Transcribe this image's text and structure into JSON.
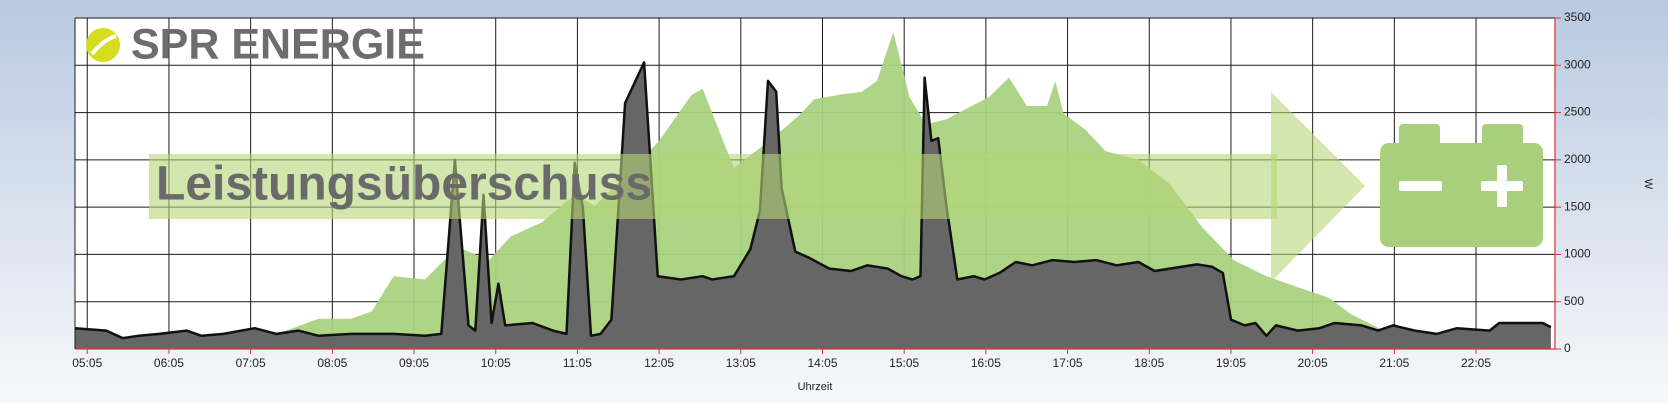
{
  "chart_data": {
    "type": "area",
    "logo": "SPR ENERGIE",
    "banner": "Leistungsüberschuss",
    "xlabel": "Uhrzeit",
    "ylabel": "W",
    "xlim": [
      296,
      1383
    ],
    "xticks": [
      {
        "value": 305,
        "label": "05:05"
      },
      {
        "value": 365,
        "label": "06:05"
      },
      {
        "value": 425,
        "label": "07:05"
      },
      {
        "value": 485,
        "label": "08:05"
      },
      {
        "value": 545,
        "label": "09:05"
      },
      {
        "value": 605,
        "label": "10:05"
      },
      {
        "value": 665,
        "label": "11:05"
      },
      {
        "value": 725,
        "label": "12:05"
      },
      {
        "value": 785,
        "label": "13:05"
      },
      {
        "value": 845,
        "label": "14:05"
      },
      {
        "value": 905,
        "label": "15:05"
      },
      {
        "value": 965,
        "label": "16:05"
      },
      {
        "value": 1025,
        "label": "17:05"
      },
      {
        "value": 1085,
        "label": "18:05"
      },
      {
        "value": 1145,
        "label": "19:05"
      },
      {
        "value": 1205,
        "label": "20:05"
      },
      {
        "value": 1265,
        "label": "21:05"
      },
      {
        "value": 1325,
        "label": "22:05"
      }
    ],
    "ylim": [
      0,
      3500
    ],
    "yticks": [
      0,
      500,
      1000,
      1500,
      2000,
      2500,
      3000,
      3500
    ],
    "grid": true,
    "axis_color": "#e03030",
    "series": [
      {
        "color": "#a9d37e",
        "fill": true,
        "x": [
          305,
          389,
          421,
          452,
          475,
          499,
          514,
          530,
          553,
          577,
          600,
          616,
          639,
          663,
          678,
          702,
          725,
          749,
          757,
          772,
          780,
          796,
          811,
          827,
          839,
          858,
          874,
          885,
          897,
          909,
          921,
          936,
          952,
          967,
          982,
          995,
          1010,
          1016,
          1022,
          1038,
          1053,
          1077,
          1100,
          1124,
          1147,
          1171,
          1194,
          1217,
          1233,
          1257,
          1280,
          1296,
          1383
        ],
        "values": [
          0,
          0,
          50,
          200,
          320,
          320,
          400,
          770,
          735,
          1080,
          940,
          1190,
          1340,
          1630,
          1515,
          1860,
          2200,
          2690,
          2750,
          2200,
          1915,
          2090,
          2260,
          2460,
          2640,
          2690,
          2720,
          2835,
          3350,
          2660,
          2375,
          2430,
          2550,
          2660,
          2870,
          2570,
          2570,
          2835,
          2490,
          2320,
          2090,
          2000,
          1745,
          1285,
          940,
          770,
          655,
          540,
          370,
          195,
          45,
          0,
          0
        ]
      },
      {
        "color": "#111111",
        "fill": "#666666",
        "x": [
          296,
          319,
          331,
          343,
          358,
          378,
          389,
          405,
          428,
          444,
          460,
          475,
          499,
          530,
          553,
          565,
          575,
          585,
          590,
          596,
          602,
          607,
          612,
          632,
          647,
          657,
          663,
          669,
          675,
          682,
          690,
          700,
          714,
          724,
          741,
          757,
          764,
          780,
          792,
          799,
          805,
          811,
          815,
          825,
          835,
          850,
          866,
          878,
          893,
          903,
          911,
          917,
          920,
          925,
          930,
          936,
          944,
          956,
          964,
          975,
          987,
          999,
          1014,
          1030,
          1046,
          1061,
          1077,
          1089,
          1100,
          1120,
          1131,
          1139,
          1145,
          1155,
          1163,
          1171,
          1178,
          1194,
          1210,
          1221,
          1241,
          1253,
          1264,
          1280,
          1296,
          1311,
          1335,
          1342,
          1374,
          1380
        ],
        "values": [
          220,
          195,
          115,
          140,
          160,
          195,
          140,
          160,
          220,
          160,
          195,
          140,
          160,
          160,
          140,
          160,
          2000,
          250,
          195,
          1630,
          275,
          690,
          250,
          275,
          195,
          160,
          1970,
          1490,
          140,
          160,
          310,
          2600,
          3030,
          770,
          735,
          770,
          735,
          770,
          1055,
          1460,
          2835,
          2720,
          1700,
          1030,
          965,
          850,
          825,
          885,
          850,
          770,
          735,
          770,
          2870,
          2200,
          2230,
          1515,
          735,
          770,
          735,
          805,
          920,
          885,
          940,
          920,
          940,
          885,
          920,
          825,
          850,
          895,
          870,
          805,
          310,
          250,
          275,
          140,
          250,
          195,
          220,
          275,
          250,
          195,
          250,
          195,
          160,
          220,
          195,
          275,
          275,
          230
        ]
      }
    ]
  }
}
